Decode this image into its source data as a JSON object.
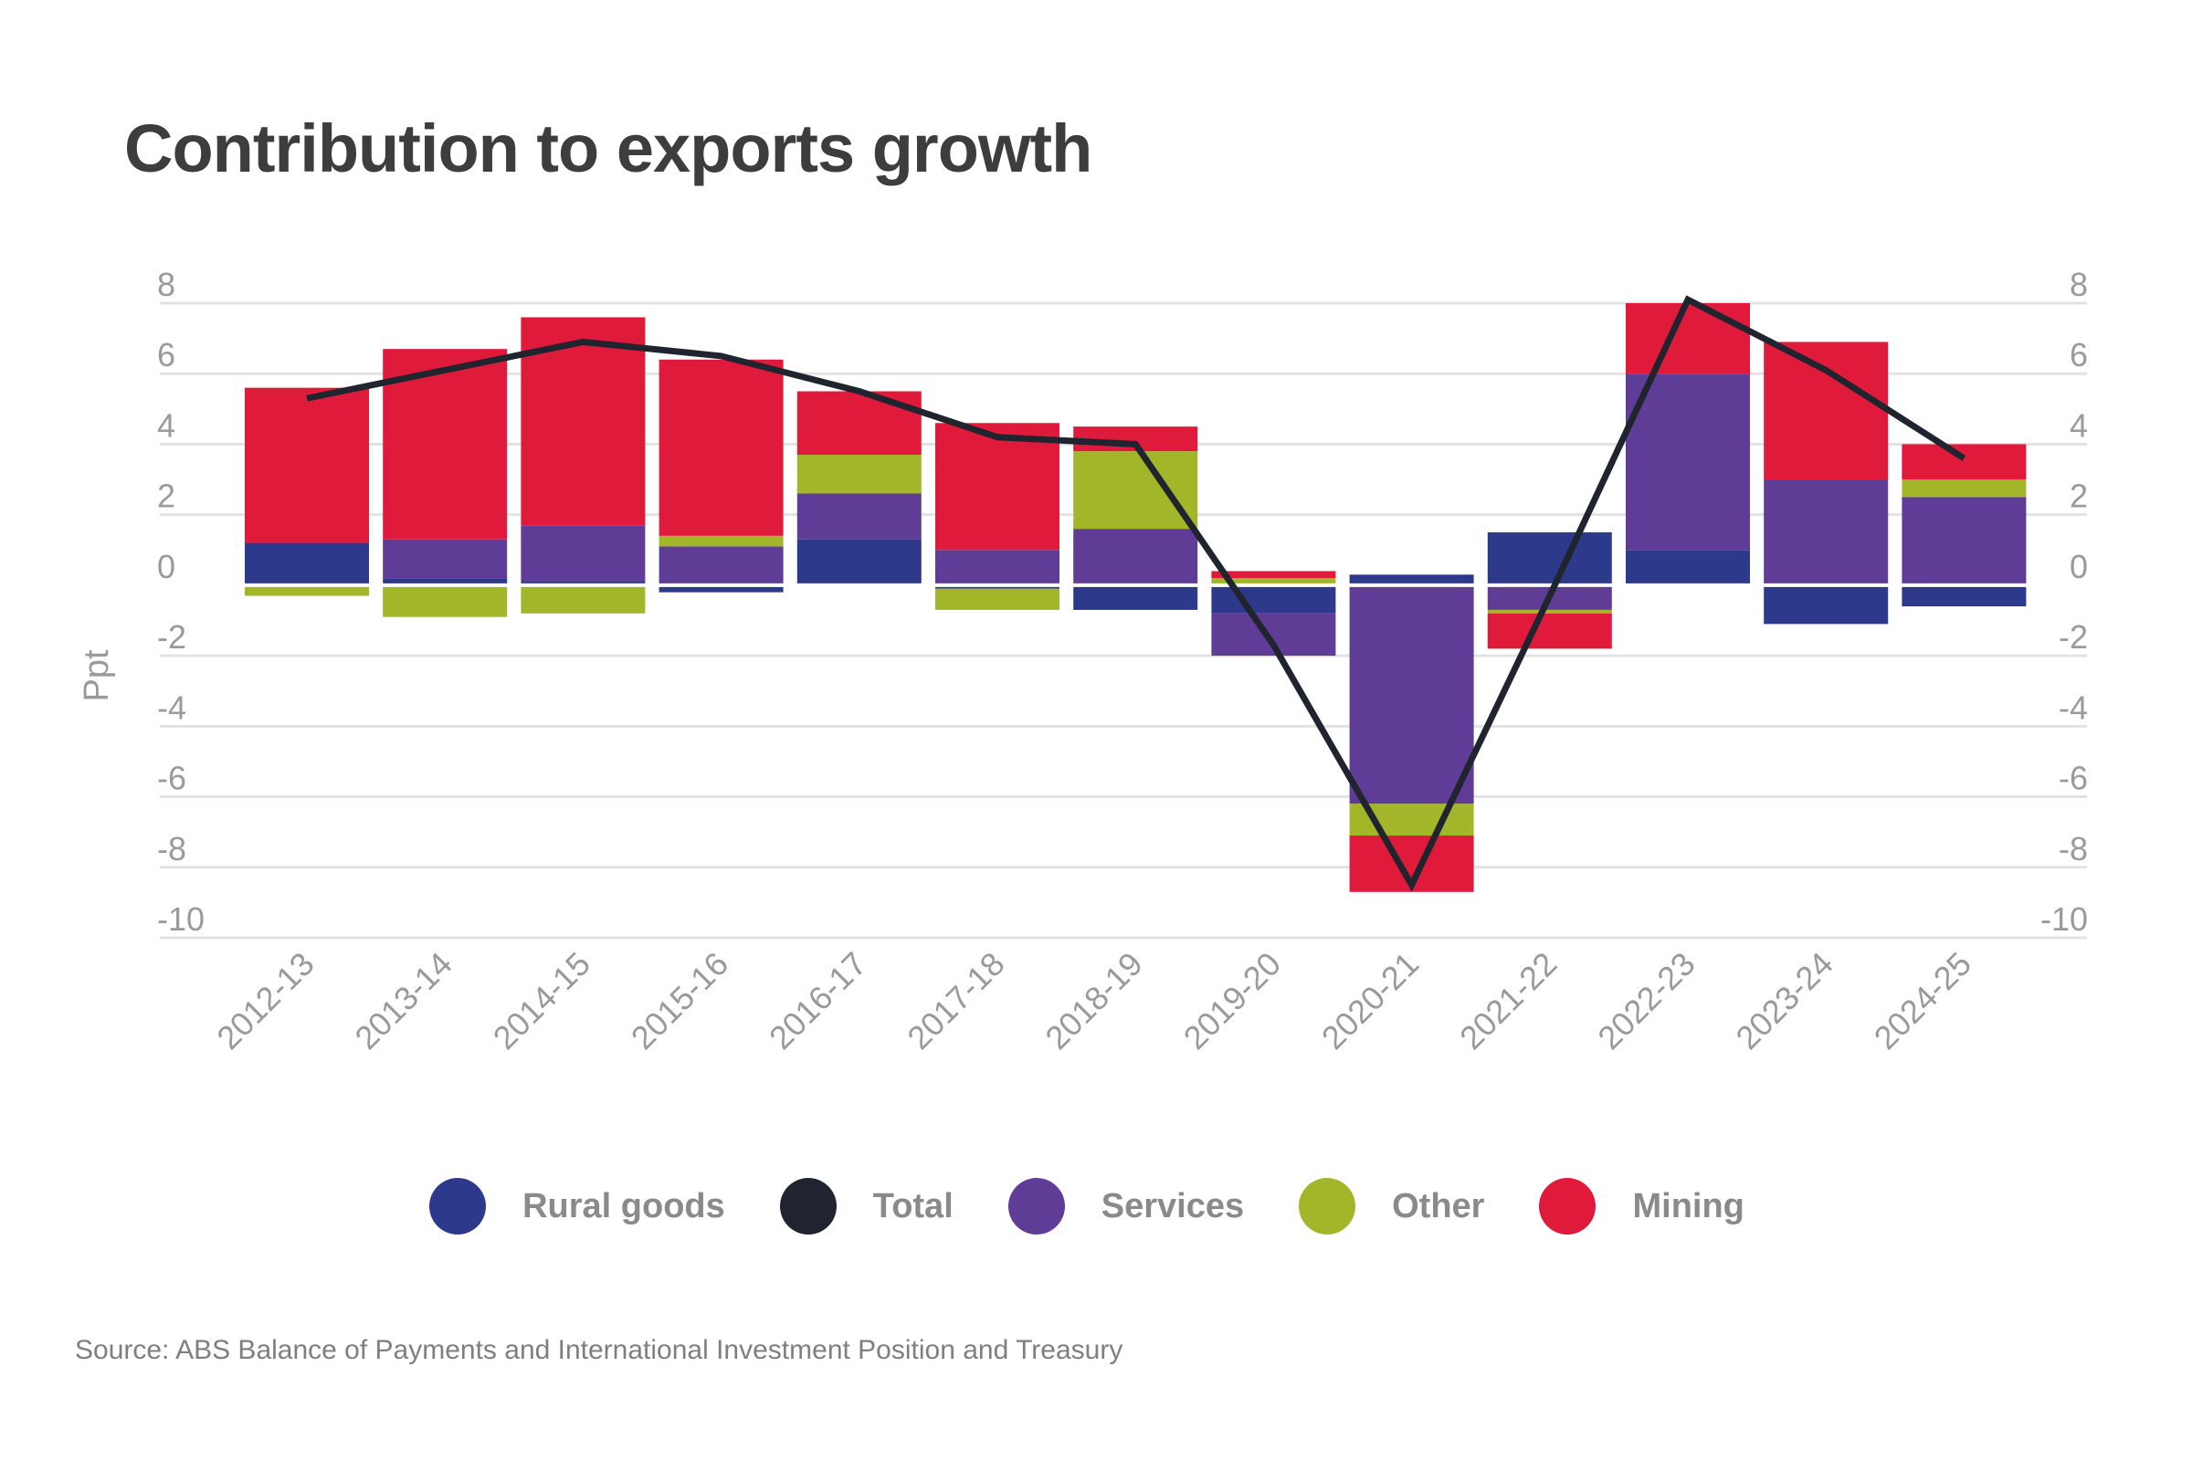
{
  "title": "Contribution to exports growth",
  "source": "Source: ABS Balance of Payments and International Investment Position and Treasury",
  "legend": [
    {
      "name": "Rural goods",
      "color": "#2d3a8c"
    },
    {
      "name": "Total",
      "color": "#20242e"
    },
    {
      "name": "Services",
      "color": "#5f3d96"
    },
    {
      "name": "Other",
      "color": "#a3b62a"
    },
    {
      "name": "Mining",
      "color": "#e01a3a"
    }
  ],
  "chart_data": {
    "type": "bar",
    "stacked": true,
    "title": "Contribution to exports growth",
    "ylabel": "Ppt",
    "ylim": [
      -10,
      8
    ],
    "yticks": [
      8,
      6,
      4,
      2,
      0,
      -2,
      -4,
      -6,
      -8,
      -10
    ],
    "grid": true,
    "legend_position": "bottom",
    "categories": [
      "2012-13",
      "2013-14",
      "2014-15",
      "2015-16",
      "2016-17",
      "2017-18",
      "2018-19",
      "2019-20",
      "2020-21",
      "2021-22",
      "2022-23",
      "2023-24",
      "2024-25"
    ],
    "series": [
      {
        "name": "Rural goods",
        "color": "#2d3a8c",
        "values": [
          1.2,
          0.2,
          0.1,
          -0.2,
          1.3,
          -0.1,
          -0.7,
          -0.8,
          0.3,
          1.5,
          1.0,
          -1.1,
          -0.6
        ]
      },
      {
        "name": "Services",
        "color": "#5f3d96",
        "values": [
          0.0,
          1.1,
          1.6,
          1.1,
          1.3,
          1.0,
          1.6,
          -1.2,
          -6.2,
          -0.7,
          5.0,
          3.0,
          2.5
        ]
      },
      {
        "name": "Other",
        "color": "#a3b62a",
        "values": [
          -0.3,
          -0.9,
          -0.8,
          0.3,
          1.1,
          -0.6,
          2.2,
          0.2,
          -0.9,
          -0.1,
          0.0,
          0.0,
          0.5
        ]
      },
      {
        "name": "Mining",
        "color": "#e01a3a",
        "values": [
          4.4,
          5.4,
          5.9,
          5.0,
          1.8,
          3.6,
          0.7,
          0.2,
          -1.6,
          -1.0,
          2.0,
          3.9,
          1.0
        ]
      },
      {
        "name": "Total",
        "color": "#20242e",
        "type": "line",
        "values": [
          5.3,
          6.1,
          6.9,
          6.5,
          5.5,
          4.2,
          4.0,
          -1.7,
          -8.5,
          -0.3,
          8.1,
          6.1,
          3.6
        ]
      }
    ]
  }
}
